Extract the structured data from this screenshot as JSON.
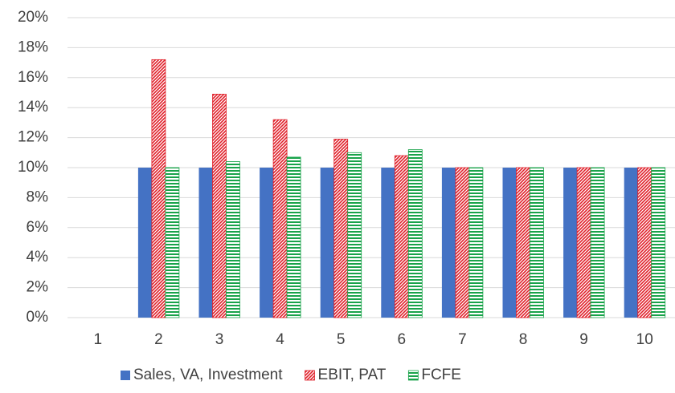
{
  "chart_data": {
    "type": "bar",
    "categories": [
      "1",
      "2",
      "3",
      "4",
      "5",
      "6",
      "7",
      "8",
      "9",
      "10"
    ],
    "series": [
      {
        "name": "Sales, VA, Investment",
        "color": "#4472c4",
        "pattern": "solid",
        "values": [
          0,
          10,
          10,
          10,
          10,
          10,
          10,
          10,
          10,
          10
        ]
      },
      {
        "name": "EBIT, PAT",
        "color": "#e0202a",
        "pattern": "diagonal",
        "values": [
          0,
          17.2,
          14.9,
          13.2,
          11.9,
          10.8,
          10,
          10,
          10,
          10
        ]
      },
      {
        "name": "FCFE",
        "color": "#19a34a",
        "pattern": "horizontal",
        "values": [
          0,
          10,
          10.4,
          10.7,
          11.0,
          11.2,
          10,
          10,
          10,
          10
        ]
      }
    ],
    "ylim": [
      0,
      20
    ],
    "yticks": [
      {
        "value": 0,
        "label": "0%"
      },
      {
        "value": 2,
        "label": "2%"
      },
      {
        "value": 4,
        "label": "4%"
      },
      {
        "value": 6,
        "label": "6%"
      },
      {
        "value": 8,
        "label": "8%"
      },
      {
        "value": 10,
        "label": "10%"
      },
      {
        "value": 12,
        "label": "12%"
      },
      {
        "value": 14,
        "label": "14%"
      },
      {
        "value": 16,
        "label": "16%"
      },
      {
        "value": 18,
        "label": "18%"
      },
      {
        "value": 20,
        "label": "20%"
      }
    ],
    "grid": true,
    "legend": "bottom"
  }
}
